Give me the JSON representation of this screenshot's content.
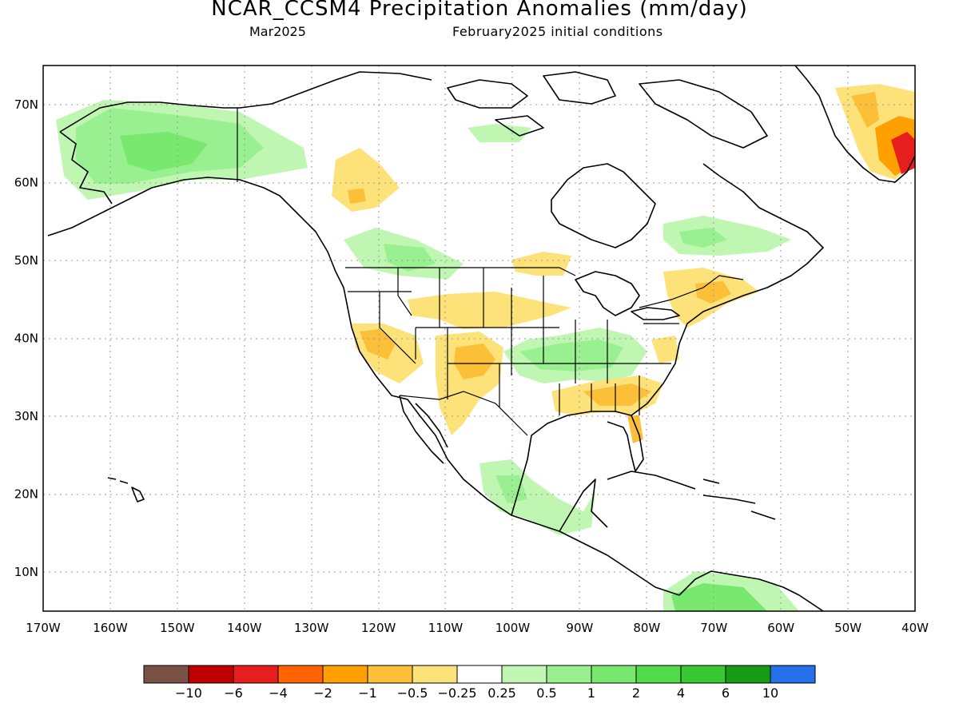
{
  "title": "NCAR_CCSM4 Precipitation Anomalies (mm/day)",
  "subtitle_left": "Mar2025",
  "subtitle_right": "February2025 initial conditions",
  "map": {
    "lon_range": [
      -170,
      -40
    ],
    "lat_range": [
      5,
      75
    ],
    "x_ticks": [
      "170W",
      "160W",
      "150W",
      "140W",
      "130W",
      "120W",
      "110W",
      "100W",
      "90W",
      "80W",
      "70W",
      "60W",
      "50W",
      "40W"
    ],
    "y_ticks": [
      "10N",
      "20N",
      "30N",
      "40N",
      "50N",
      "60N",
      "70N"
    ],
    "gridlines": true
  },
  "colorbar": {
    "colors": [
      "#7b5145",
      "#bf0000",
      "#e61e1e",
      "#ff6400",
      "#ff9f00",
      "#fbc038",
      "#fde27a",
      "#ffffff",
      "#bff7b2",
      "#98f090",
      "#78e86e",
      "#50dc4a",
      "#37c832",
      "#169c14",
      "#2570e8"
    ],
    "labels": [
      "−10",
      "−6",
      "−4",
      "−2",
      "−1",
      "−0.5",
      "−0.25",
      "0.25",
      "0.5",
      "1",
      "2",
      "4",
      "6",
      "10"
    ]
  },
  "colors": {
    "dry": "#fde27a",
    "drier": "#fbc038",
    "wet": "#98f090",
    "wetter": "#78e86e",
    "extreme_dry": "#e61e1e"
  }
}
